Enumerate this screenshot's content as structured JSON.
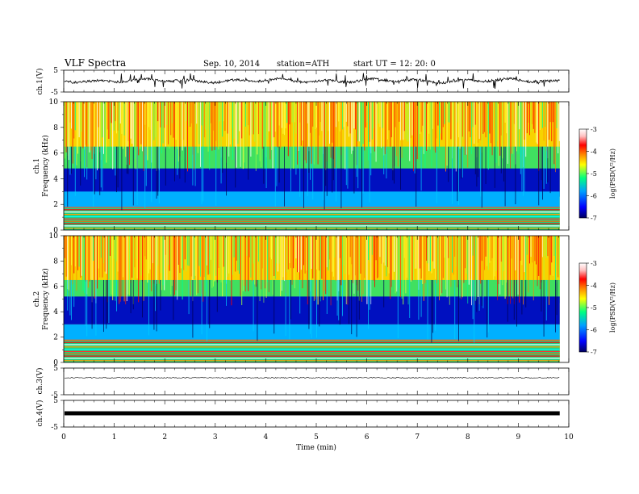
{
  "header": {
    "title": "VLF  Spectra",
    "date": "Sep. 10, 2014",
    "station": "station=ATH",
    "start_ut": "start  UT  =    12: 20: 0"
  },
  "panels": {
    "ch1_wave": {
      "ylabel": "ch.1(V)",
      "yticks": [
        "5",
        "-5"
      ]
    },
    "ch1_spec": {
      "ylabel_top": "ch.1",
      "ylabel_bottom": "Frequency  (kHz)",
      "yticks": [
        "0",
        "2",
        "4",
        "6",
        "8",
        "10"
      ]
    },
    "ch2_spec": {
      "ylabel_top": "ch.2",
      "ylabel_bottom": "Frequency  (kHz)",
      "yticks": [
        "0",
        "2",
        "4",
        "6",
        "8",
        "10"
      ]
    },
    "ch3_wave": {
      "ylabel": "ch.3(V)",
      "yticks": [
        "5",
        "-5"
      ]
    },
    "ch4_wave": {
      "ylabel": "ch.4(V)",
      "yticks": [
        "5",
        "-5"
      ]
    }
  },
  "xaxis": {
    "label": "Time  (min)",
    "ticks": [
      "0",
      "1",
      "2",
      "3",
      "4",
      "5",
      "6",
      "7",
      "8",
      "9",
      "10"
    ]
  },
  "colorbar": {
    "label": "log(PSD(V²/Hz)",
    "ticks": [
      "-3",
      "-4",
      "-5",
      "-6",
      "-7"
    ],
    "colors": [
      "#000080",
      "#0000ff",
      "#00a0ff",
      "#00ff80",
      "#ffff00",
      "#ff8000",
      "#ff0000",
      "#ffd0d0",
      "#ffffff"
    ]
  },
  "chart_data": [
    {
      "type": "line",
      "title": "ch.1(V)",
      "ylabel": "ch.1(V)",
      "xlabel": "Time  (min)",
      "xlim": [
        0,
        10
      ],
      "ylim": [
        -5,
        5
      ],
      "data_extent_x": [
        0,
        9.82
      ],
      "baseline_value": 0,
      "grid": false
    },
    {
      "type": "heatmap",
      "title": "ch.1 spectrogram",
      "ylabel": "Frequency  (kHz)",
      "xlabel": "Time  (min)",
      "xlim": [
        0,
        10
      ],
      "ylim": [
        0,
        10
      ],
      "zlim": [
        -7,
        -3
      ],
      "data_extent_x": [
        0,
        9.82
      ],
      "color_label": "log(PSD(V²/Hz)",
      "grid": false
    },
    {
      "type": "heatmap",
      "title": "ch.2 spectrogram",
      "ylabel": "Frequency  (kHz)",
      "xlabel": "Time  (min)",
      "xlim": [
        0,
        10
      ],
      "ylim": [
        0,
        10
      ],
      "zlim": [
        -7,
        -3
      ],
      "data_extent_x": [
        0,
        9.82
      ],
      "color_label": "log(PSD(V²/Hz)",
      "grid": false
    },
    {
      "type": "line",
      "title": "ch.3(V)",
      "ylabel": "ch.3(V)",
      "xlim": [
        0,
        10
      ],
      "ylim": [
        -5,
        5
      ],
      "data_extent_x": [
        0,
        9.82
      ],
      "baseline_value": 0,
      "grid": false
    },
    {
      "type": "line",
      "title": "ch.4(V)",
      "ylabel": "ch.4(V)",
      "xlabel": "Time  (min)",
      "xlim": [
        0,
        10
      ],
      "ylim": [
        -5,
        5
      ],
      "data_extent_x": [
        0,
        9.82
      ],
      "baseline_value": 0,
      "grid": false
    }
  ]
}
